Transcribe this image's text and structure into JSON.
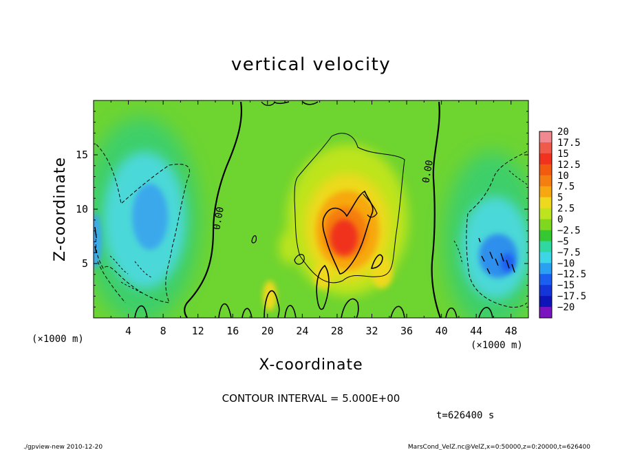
{
  "chart_data": {
    "type": "heatmap",
    "title": "vertical velocity",
    "xlabel": "X-coordinate",
    "ylabel": "Z-coordinate",
    "x_unit": "(×1000 m)",
    "y_unit": "(×1000 m)",
    "xlim": [
      0,
      50
    ],
    "ylim": [
      0,
      20
    ],
    "x_ticks": [
      "4",
      "8",
      "12",
      "16",
      "20",
      "24",
      "28",
      "32",
      "36",
      "40",
      "44",
      "48"
    ],
    "x_tick_values": [
      4,
      8,
      12,
      16,
      20,
      24,
      28,
      32,
      36,
      40,
      44,
      48
    ],
    "y_ticks": [
      "5",
      "10",
      "15"
    ],
    "y_tick_values": [
      5,
      10,
      15
    ],
    "contour_interval_text": "CONTOUR INTERVAL = 5.000E+00",
    "time_text": "t=626400 s",
    "zero_contour_labels": [
      "0.00",
      "0.00"
    ],
    "colorbar": {
      "labels": [
        "20",
        "17.5",
        "15",
        "12.5",
        "10",
        "7.5",
        "5",
        "2.5",
        "0",
        "−2.5",
        "−5",
        "−7.5",
        "−10",
        "−12.5",
        "−15",
        "−17.5",
        "−20"
      ],
      "levels": [
        20,
        17.5,
        15,
        12.5,
        10,
        7.5,
        5,
        2.5,
        0,
        -2.5,
        -5,
        -7.5,
        -10,
        -12.5,
        -15,
        -17.5,
        -20
      ],
      "colors": [
        "#f08a90",
        "#f05a4a",
        "#f0321e",
        "#f25a10",
        "#f57e10",
        "#f7a811",
        "#eed91e",
        "#bde41e",
        "#80d81e",
        "#35c832",
        "#2fd8a0",
        "#3cd6e6",
        "#2aa0f0",
        "#1a5ff0",
        "#1435d8",
        "#0d14b8",
        "#7a14c0"
      ]
    },
    "features": [
      {
        "kind": "updraft",
        "x_center": 29,
        "z_center": 8,
        "peak_value": 15
      },
      {
        "kind": "downdraft",
        "x_center": 6.5,
        "z_center": 9,
        "peak_value": -10
      },
      {
        "kind": "downdraft",
        "x_center": 46,
        "z_center": 5,
        "peak_value": -12.5
      }
    ]
  },
  "footer": {
    "left": "./gpview-new  2010-12-20",
    "right": "MarsCond_VelZ.nc@VelZ,x=0:50000,z=0:20000,t=626400"
  }
}
